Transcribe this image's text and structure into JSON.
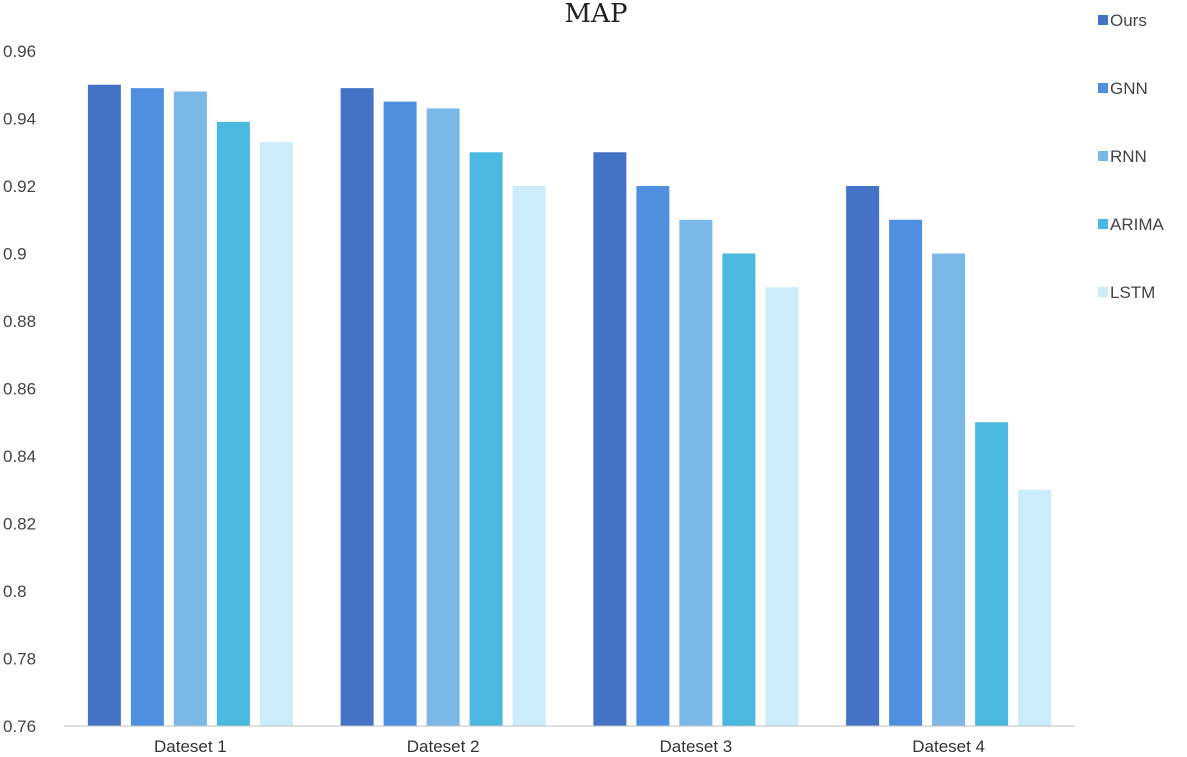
{
  "chart_data": {
    "type": "bar",
    "title": "MAP",
    "xlabel": "",
    "ylabel": "",
    "ylim": [
      0.76,
      0.96
    ],
    "yticks": [
      0.76,
      0.78,
      0.8,
      0.82,
      0.84,
      0.86,
      0.88,
      0.9,
      0.92,
      0.94,
      0.96
    ],
    "ytick_labels": [
      "0.76",
      "0.78",
      "0.8",
      "0.82",
      "0.84",
      "0.86",
      "0.88",
      "0.9",
      "0.92",
      "0.94",
      "0.96"
    ],
    "grid": false,
    "legend_position": "right",
    "categories": [
      "Dateset 1",
      "Dateset 2",
      "Dateset 3",
      "Dateset 4"
    ],
    "series": [
      {
        "name": "Ours",
        "color": "#4472c4",
        "values": [
          0.95,
          0.949,
          0.93,
          0.92
        ]
      },
      {
        "name": "GNN",
        "color": "#4e8fe0",
        "values": [
          0.949,
          0.945,
          0.92,
          0.91
        ]
      },
      {
        "name": "RNN",
        "color": "#7ab8e8",
        "values": [
          0.948,
          0.943,
          0.91,
          0.9
        ]
      },
      {
        "name": "ARIMA",
        "color": "#4ab8e0",
        "values": [
          0.939,
          0.93,
          0.9,
          0.85
        ]
      },
      {
        "name": "LSTM",
        "color": "#cbecfa",
        "values": [
          0.933,
          0.92,
          0.89,
          0.83
        ]
      }
    ]
  }
}
